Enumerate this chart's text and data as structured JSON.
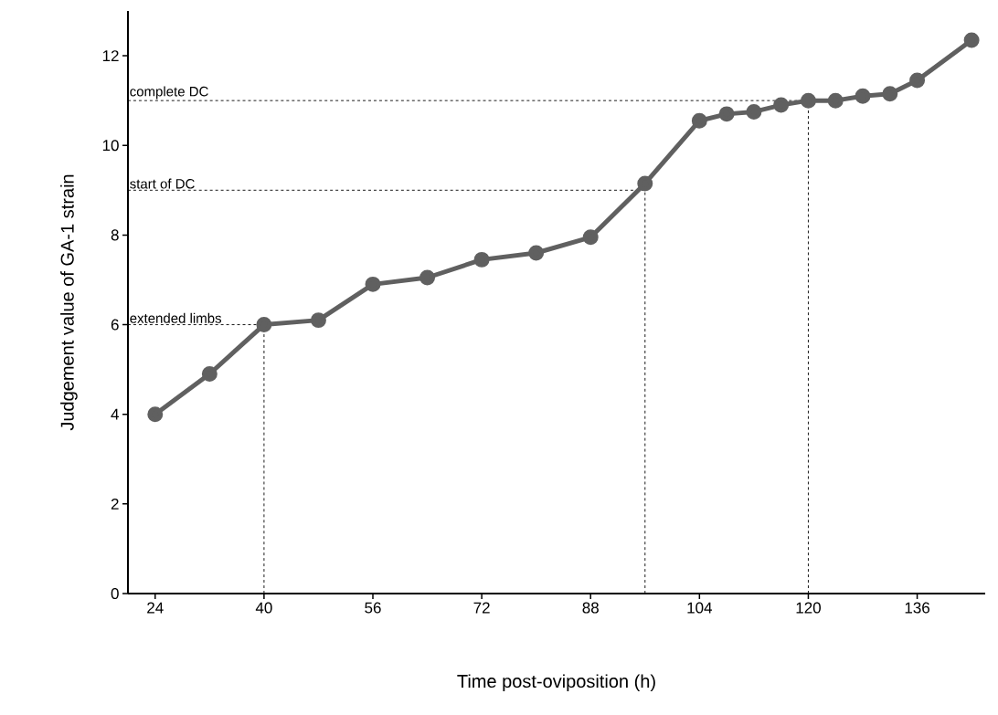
{
  "chart_data": {
    "type": "line",
    "xlabel": "Time post-oviposition (h)",
    "ylabel": "Judgement value of GA-1 strain",
    "x": [
      24,
      32,
      40,
      48,
      56,
      64,
      72,
      80,
      88,
      96,
      104,
      108,
      112,
      116,
      120,
      124,
      128,
      132,
      136,
      144
    ],
    "series": [
      {
        "color": "#606060",
        "values": [
          4.0,
          4.9,
          6.0,
          6.1,
          6.9,
          7.05,
          7.45,
          7.6,
          7.95,
          9.15,
          10.55,
          10.7,
          10.75,
          10.9,
          11.0,
          11.0,
          11.1,
          11.15,
          11.45,
          12.35
        ]
      }
    ],
    "xlim": [
      20,
      146
    ],
    "ylim": [
      0,
      13
    ],
    "xticks": [
      24,
      40,
      56,
      72,
      88,
      104,
      120,
      136
    ],
    "yticks": [
      0,
      2,
      4,
      6,
      8,
      10,
      12
    ],
    "ref_lines": [
      {
        "axis": "y",
        "value": 6,
        "label": "extended limbs",
        "line_style": "dashed"
      },
      {
        "axis": "y",
        "value": 9,
        "label": "start of DC",
        "line_style": "dashed"
      },
      {
        "axis": "y",
        "value": 11,
        "label": "complete DC",
        "line_style": "dashed"
      },
      {
        "axis": "x",
        "value": 40,
        "line_style": "dashed"
      },
      {
        "axis": "x",
        "value": 96,
        "line_style": "dashed"
      },
      {
        "axis": "x",
        "value": 120,
        "line_style": "dashed"
      }
    ],
    "marker": "circle",
    "line_style": "solid",
    "grid": false
  }
}
